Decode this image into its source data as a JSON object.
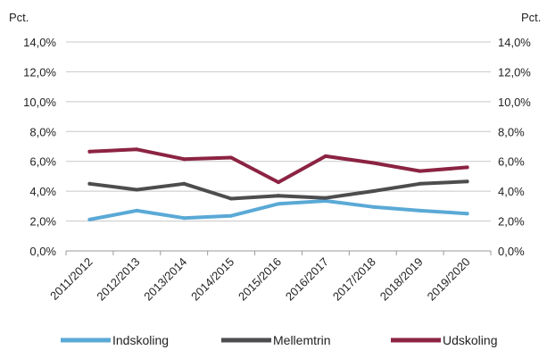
{
  "chart_data": {
    "type": "line",
    "title": "",
    "xlabel": "",
    "ylabel": "",
    "y_unit_left": "Pct.",
    "y_unit_right": "Pct.",
    "ylim": [
      0,
      14
    ],
    "yticks": [
      0,
      2,
      4,
      6,
      8,
      10,
      12,
      14
    ],
    "ytick_labels": [
      "0,0%",
      "2,0%",
      "4,0%",
      "6,0%",
      "8,0%",
      "10,0%",
      "12,0%",
      "14,0%"
    ],
    "grid": true,
    "legend_position": "bottom",
    "categories": [
      "2011/2012",
      "2012/2013",
      "2013/2014",
      "2014/2015",
      "2015/2016",
      "2016/2017",
      "2017/2018",
      "2018/2019",
      "2019/2020"
    ],
    "series": [
      {
        "name": "Indskoling",
        "color": "#5aa9d6",
        "values": [
          2.1,
          2.7,
          2.2,
          2.35,
          3.15,
          3.35,
          2.95,
          2.7,
          2.5
        ]
      },
      {
        "name": "Mellemtrin",
        "color": "#4d4d4f",
        "values": [
          4.5,
          4.1,
          4.5,
          3.5,
          3.7,
          3.55,
          4.0,
          4.5,
          4.65
        ]
      },
      {
        "name": "Udskoling",
        "color": "#8c2343",
        "values": [
          6.65,
          6.8,
          6.15,
          6.25,
          4.6,
          6.35,
          5.9,
          5.35,
          5.6
        ]
      }
    ]
  }
}
